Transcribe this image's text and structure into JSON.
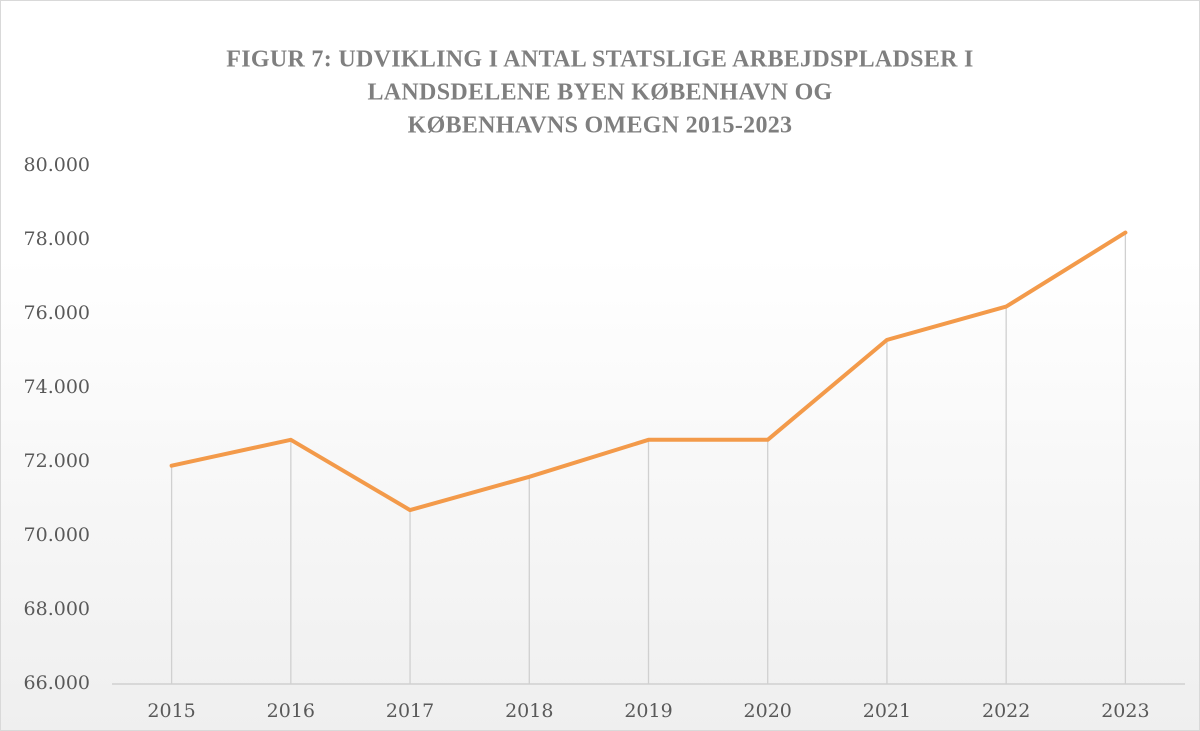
{
  "chart_data": {
    "type": "line",
    "title": [
      "FIGUR 7: UDVIKLING I ANTAL STATSLIGE ARBEJDSPLADSER I",
      "LANDSDELENE BYEN KØBENHAVN OG",
      "KØBENHAVNS OMEGN 2015-2023"
    ],
    "categories": [
      "2015",
      "2016",
      "2017",
      "2018",
      "2019",
      "2020",
      "2021",
      "2022",
      "2023"
    ],
    "values": [
      71900,
      72600,
      70700,
      71600,
      72600,
      72600,
      75300,
      76200,
      78200
    ],
    "color": "#f39a4a",
    "ylim": [
      66000,
      80000
    ],
    "yticks": [
      {
        "value": 66000,
        "label": "66.000"
      },
      {
        "value": 68000,
        "label": "68.000"
      },
      {
        "value": 70000,
        "label": "70.000"
      },
      {
        "value": 72000,
        "label": "72.000"
      },
      {
        "value": 74000,
        "label": "74.000"
      },
      {
        "value": 76000,
        "label": "76.000"
      },
      {
        "value": 78000,
        "label": "78.000"
      },
      {
        "value": 80000,
        "label": "80.000"
      }
    ],
    "drop_lines": true
  }
}
